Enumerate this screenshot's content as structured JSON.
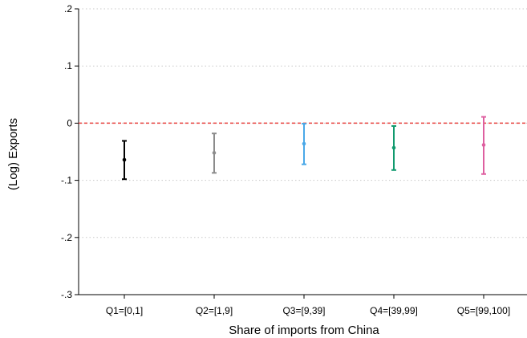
{
  "chart_data": {
    "type": "scatter",
    "title": "",
    "xlabel": "Share of imports from China",
    "ylabel": "(Log) Exports",
    "ylim": [
      -0.3,
      0.2
    ],
    "y_ticks": [
      {
        "value": 0.2,
        "label": ".2"
      },
      {
        "value": 0.1,
        "label": ".1"
      },
      {
        "value": 0,
        "label": "0"
      },
      {
        "value": -0.1,
        "label": "-.1"
      },
      {
        "value": -0.2,
        "label": "-.2"
      },
      {
        "value": -0.3,
        "label": "-.3"
      }
    ],
    "categories": [
      "Q1=[0,1]",
      "Q2=[1,9]",
      "Q3=[9,39]",
      "Q4=[39,99]",
      "Q5=[99,100]"
    ],
    "points": [
      {
        "category": "Q1=[0,1]",
        "estimate": -0.064,
        "ci_low": -0.098,
        "ci_high": -0.031,
        "color": "#000000"
      },
      {
        "category": "Q2=[1,9]",
        "estimate": -0.052,
        "ci_low": -0.087,
        "ci_high": -0.018,
        "color": "#8c8c8c"
      },
      {
        "category": "Q3=[9,39]",
        "estimate": -0.036,
        "ci_low": -0.072,
        "ci_high": -0.001,
        "color": "#4aa8e8"
      },
      {
        "category": "Q4=[39,99]",
        "estimate": -0.043,
        "ci_low": -0.082,
        "ci_high": -0.005,
        "color": "#119a6e"
      },
      {
        "category": "Q5=[99,100]",
        "estimate": -0.038,
        "ci_low": -0.089,
        "ci_high": 0.011,
        "color": "#de5fa0"
      }
    ],
    "reference_line": {
      "value": 0,
      "style": "dashed",
      "color": "#e8423f"
    },
    "grid": true,
    "grid_style": "dotted",
    "legend": "none"
  }
}
